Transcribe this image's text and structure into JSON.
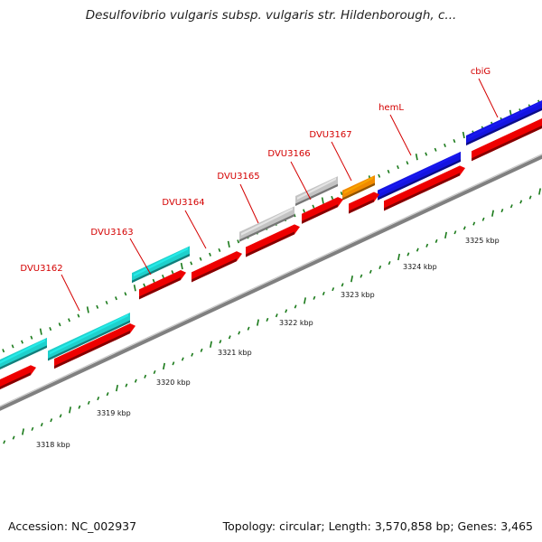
{
  "header": {
    "title": "Desulfovibrio vulgaris subsp. vulgaris str. Hildenborough, c..."
  },
  "footer": {
    "accession": "Accession: NC_002937",
    "summary": "Topology: circular; Length: 3,570,858 bp; Genes: 3,465"
  },
  "colors": {
    "cyan": "#1fd0cc",
    "grey": "#c4c4c4",
    "orange": "#f08a00",
    "blue": "#1414e0",
    "red": "#ee0000",
    "label": "#d40000",
    "tick": "#1a7a1a",
    "axis": "#808080"
  },
  "genes": [
    {
      "label": "DVU3162"
    },
    {
      "label": "DVU3163"
    },
    {
      "label": "DVU3164"
    },
    {
      "label": "DVU3165"
    },
    {
      "label": "DVU3166"
    },
    {
      "label": "DVU3167"
    },
    {
      "label": "hemL"
    },
    {
      "label": "cbiG"
    }
  ],
  "ruler": {
    "labels": [
      "3318 kbp",
      "3319 kbp",
      "3320 kbp",
      "3321 kbp",
      "3322 kbp",
      "3323 kbp",
      "3324 kbp",
      "3325 kbp"
    ]
  }
}
